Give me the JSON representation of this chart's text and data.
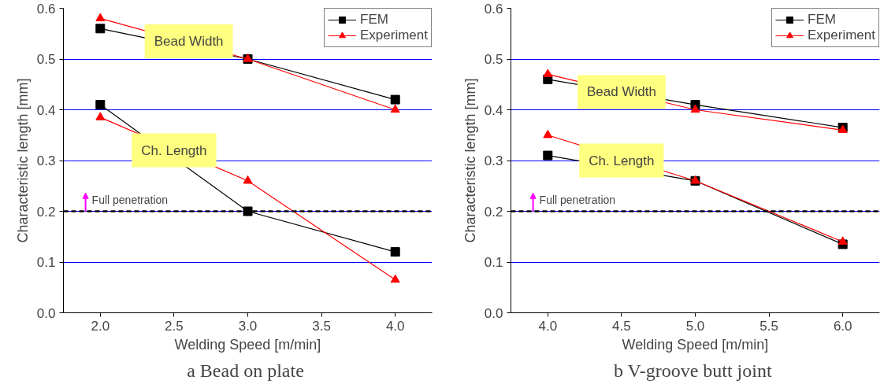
{
  "chart_data": [
    {
      "type": "line",
      "title": "a  Bead on plate",
      "xlabel": "Welding Speed [m/min]",
      "ylabel": "Characteristic length [mm]",
      "x": [
        2,
        3,
        4
      ],
      "xlim": [
        1.75,
        4.25
      ],
      "xticks": [
        {
          "value": 2,
          "label": "2.0"
        },
        {
          "value": 2.5,
          "label": "2.5"
        },
        {
          "value": 3,
          "label": "3.0"
        },
        {
          "value": 3.5,
          "label": "3.5"
        },
        {
          "value": 4,
          "label": "4.0"
        }
      ],
      "ylim": [
        0,
        0.6
      ],
      "yticks": [
        {
          "value": 0,
          "label": "0.0"
        },
        0.1,
        0.2,
        0.3,
        0.4,
        0.5,
        0.6
      ],
      "grid": "y",
      "legend": "top right",
      "line_style": "solid",
      "series": [
        {
          "name": "FEM",
          "color": "#000000",
          "marker": "square",
          "values": [
            0.56,
            0.5,
            0.42
          ]
        },
        {
          "name": "Experiment",
          "color": "#ff0000",
          "marker": "triangle",
          "values": [
            0.58,
            0.5,
            0.4
          ]
        },
        {
          "color": "#000000",
          "marker": "square",
          "values": [
            0.41,
            0.2,
            0.12
          ]
        },
        {
          "color": "#ff0000",
          "marker": "triangle",
          "values": [
            0.385,
            0.26,
            0.065
          ]
        }
      ],
      "ref_lines": [
        {
          "axis": "y",
          "value": 0.2,
          "label": "Full penetration",
          "color": "#000000",
          "line_style": "dashed"
        }
      ],
      "annotations": [
        {
          "text": "Bead Width",
          "x": 2.6,
          "y": 0.535
        },
        {
          "text": "Ch. Length",
          "x": 2.5,
          "y": 0.32
        }
      ]
    },
    {
      "type": "line",
      "title": "b  V-groove butt joint",
      "xlabel": "Welding Speed [m/min]",
      "ylabel": "Characteristic length [mm]",
      "x": [
        4,
        5,
        6
      ],
      "xlim": [
        3.75,
        6.25
      ],
      "xticks": [
        {
          "value": 4,
          "label": "4.0"
        },
        {
          "value": 4.5,
          "label": "4.5"
        },
        {
          "value": 5,
          "label": "5.0"
        },
        {
          "value": 5.5,
          "label": "5.5"
        },
        {
          "value": 6,
          "label": "6.0"
        }
      ],
      "ylim": [
        0,
        0.6
      ],
      "yticks": [
        {
          "value": 0,
          "label": "0.0"
        },
        0.1,
        0.2,
        0.3,
        0.4,
        0.5,
        0.6
      ],
      "grid": "y",
      "legend": "top right",
      "line_style": "solid",
      "series": [
        {
          "name": "FEM",
          "color": "#000000",
          "marker": "square",
          "values": [
            0.46,
            0.41,
            0.365
          ]
        },
        {
          "name": "Experiment",
          "color": "#ff0000",
          "marker": "triangle",
          "values": [
            0.47,
            0.4,
            0.36
          ]
        },
        {
          "color": "#000000",
          "marker": "square",
          "values": [
            0.31,
            0.26,
            0.135
          ]
        },
        {
          "color": "#ff0000",
          "marker": "triangle",
          "values": [
            0.35,
            0.26,
            0.14
          ]
        }
      ],
      "ref_lines": [
        {
          "axis": "y",
          "value": 0.2,
          "label": "Full penetration",
          "color": "#000000",
          "line_style": "dashed"
        }
      ],
      "annotations": [
        {
          "text": "Bead Width",
          "x": 4.5,
          "y": 0.435
        },
        {
          "text": "Ch. Length",
          "x": 4.5,
          "y": 0.3
        }
      ]
    }
  ]
}
